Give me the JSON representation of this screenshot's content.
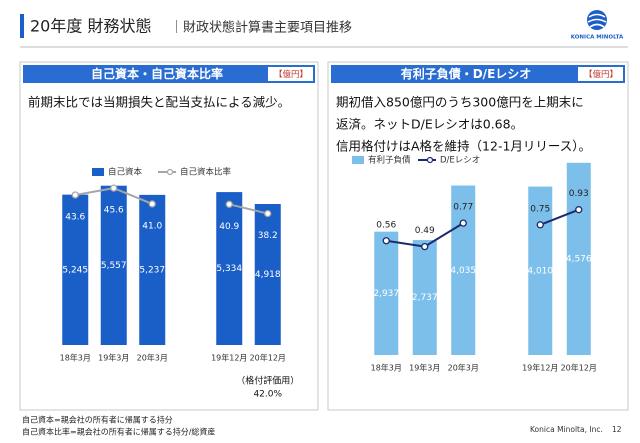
{
  "header": {
    "title": "20年度 財務状態",
    "subtitle": "｜財政状態計算書主要項目推移"
  },
  "logo": "KONICA MINOLTA",
  "chart_data": [
    {
      "type": "bar",
      "title": "自己資本・自己資本比率",
      "unit": "【億円】",
      "description": [
        "前期末比では当期損失と配当支払による減少。"
      ],
      "categories": [
        "18年3月",
        "19年3月",
        "20年3月",
        null,
        "19年12月",
        "20年12月"
      ],
      "series": [
        {
          "name": "自己資本",
          "color": "#1a5ec8",
          "values": [
            5245,
            5557,
            5237,
            null,
            5334,
            4918
          ],
          "value_labels": [
            "5,245",
            "5,557",
            "5,237",
            null,
            "5,334",
            "4,918"
          ]
        },
        {
          "name": "自己資本比率",
          "color": "#a6a6a6",
          "type": "line",
          "axis": "y2",
          "values": [
            43.6,
            45.6,
            41.0,
            null,
            40.9,
            38.2
          ],
          "value_labels": [
            "43.6",
            "45.6",
            "41.0",
            null,
            "40.9",
            "38.2"
          ]
        }
      ],
      "ylim": [
        0,
        6000
      ],
      "y2lim": [
        0,
        50
      ],
      "annotation": [
        "（格付評価用）",
        "42.0%"
      ]
    },
    {
      "type": "bar",
      "title": "有利子負債・D/Eレシオ",
      "unit": "【億円】",
      "description": [
        "期初借入850億円のうち300億円を上期末に",
        "返済。ネットD/Eレシオは0.68。",
        "信用格付けはA格を維持（12-1月リリース）。"
      ],
      "categories": [
        "18年3月",
        "19年3月",
        "20年3月",
        null,
        "19年12月",
        "20年12月"
      ],
      "series": [
        {
          "name": "有利子負債",
          "color": "#7bbfea",
          "values": [
            2937,
            2737,
            4035,
            null,
            4010,
            4576
          ],
          "value_labels": [
            "2,937",
            "2,737",
            "4,035",
            null,
            "4,010",
            "4,576"
          ]
        },
        {
          "name": "D/Eレシオ",
          "color": "#1b2a6b",
          "type": "line",
          "axis": "y2",
          "values": [
            0.56,
            0.49,
            0.77,
            null,
            0.75,
            0.93
          ]
        }
      ],
      "ylim": [
        0,
        5000
      ],
      "y2lim": [
        -0.8,
        1.7
      ]
    }
  ],
  "footnotes": [
    "自己資本=親会社の所有者に帰属する持分",
    "自己資本比率=親会社の所有者に帰属する持分/総資産"
  ],
  "footer": {
    "company": "Konica Minolta, Inc.",
    "page": 12
  }
}
